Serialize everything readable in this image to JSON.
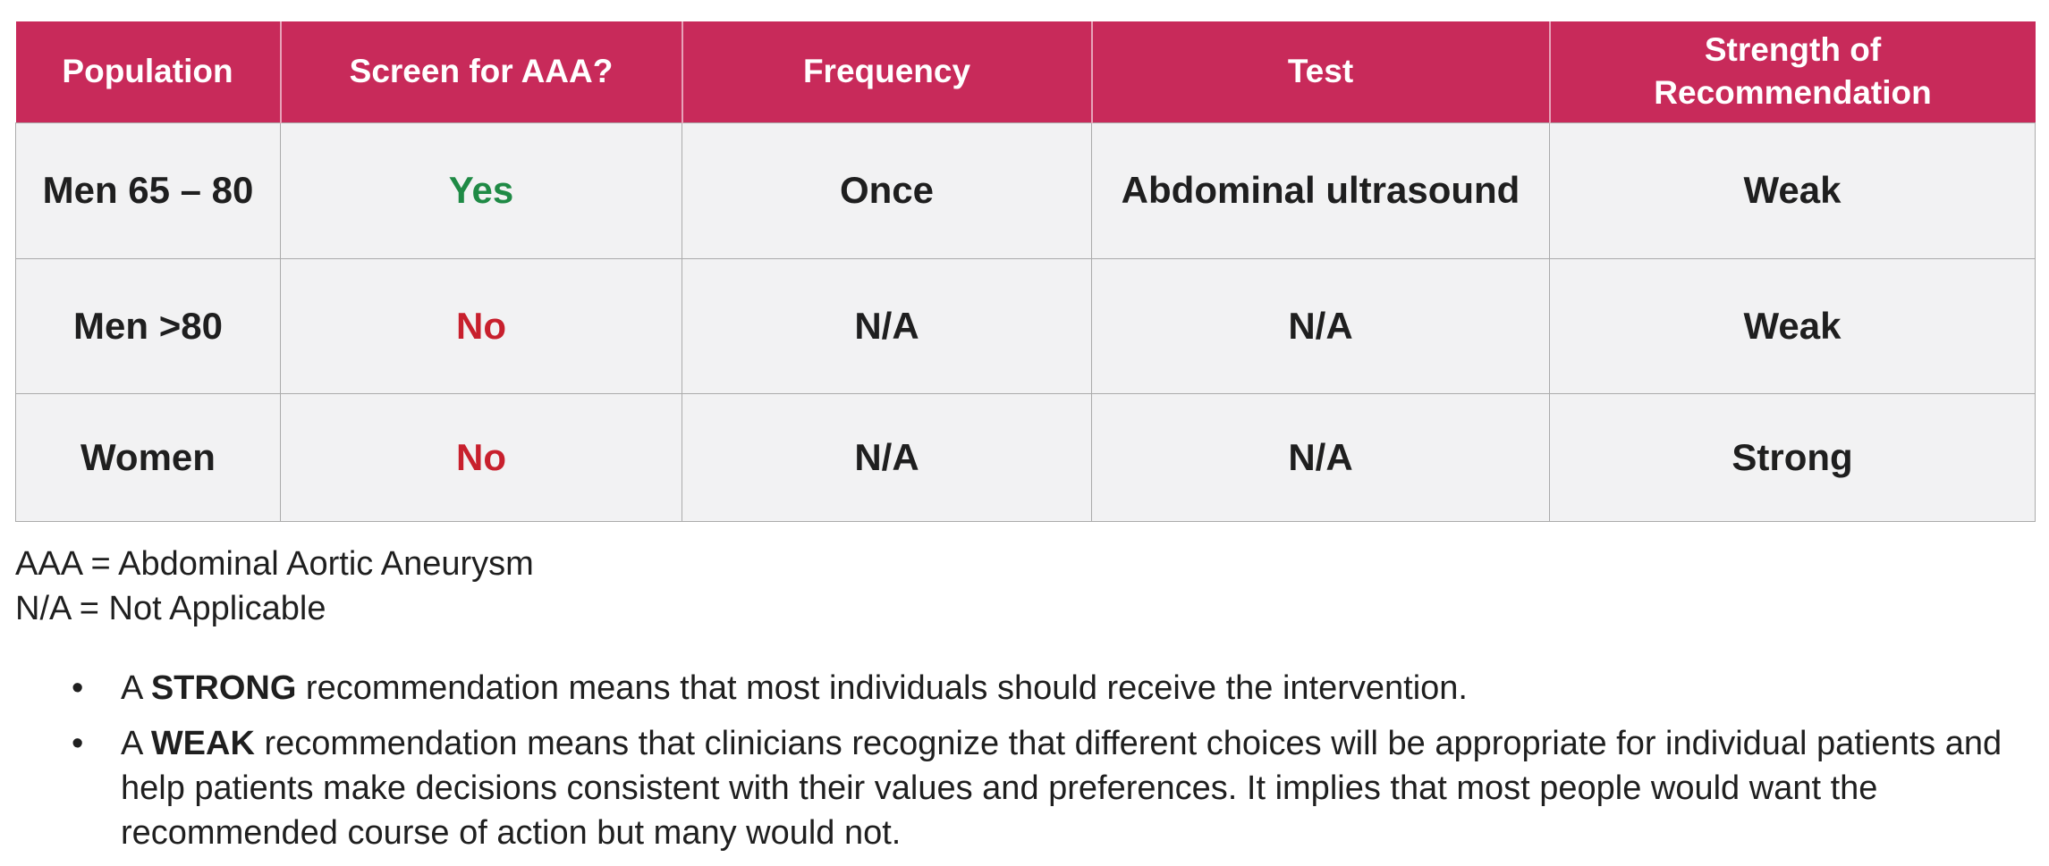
{
  "table": {
    "headers": [
      "Population",
      "Screen for AAA?",
      "Frequency",
      "Test",
      "Strength of Recommendation"
    ],
    "rows": [
      {
        "population": "Men 65 – 80",
        "screen": "Yes",
        "frequency": "Once",
        "test": "Abdominal ultrasound",
        "strength": "Weak"
      },
      {
        "population": "Men >80",
        "screen": "No",
        "frequency": "N/A",
        "test": "N/A",
        "strength": "Weak"
      },
      {
        "population": "Women",
        "screen": "No",
        "frequency": "N/A",
        "test": "N/A",
        "strength": "Strong"
      }
    ]
  },
  "colors": {
    "header_bg": "#c82a5a",
    "yes": "#1f8a45",
    "no": "#c8202d",
    "cell_bg": "#f2f2f3"
  },
  "legend": [
    "AAA = Abdominal Aortic Aneurysm",
    "N/A = Not Applicable"
  ],
  "bullets": [
    {
      "prefix": "A ",
      "keyword": "STRONG",
      "text": " recommendation means that most individuals should receive the intervention."
    },
    {
      "prefix": "A ",
      "keyword": "WEAK",
      "text": " recommendation means that clinicians recognize that different choices will be appropriate for individual patients and help patients make decisions consistent with their values and preferences. It implies that most people would want the recommended course of action but many would not."
    }
  ]
}
